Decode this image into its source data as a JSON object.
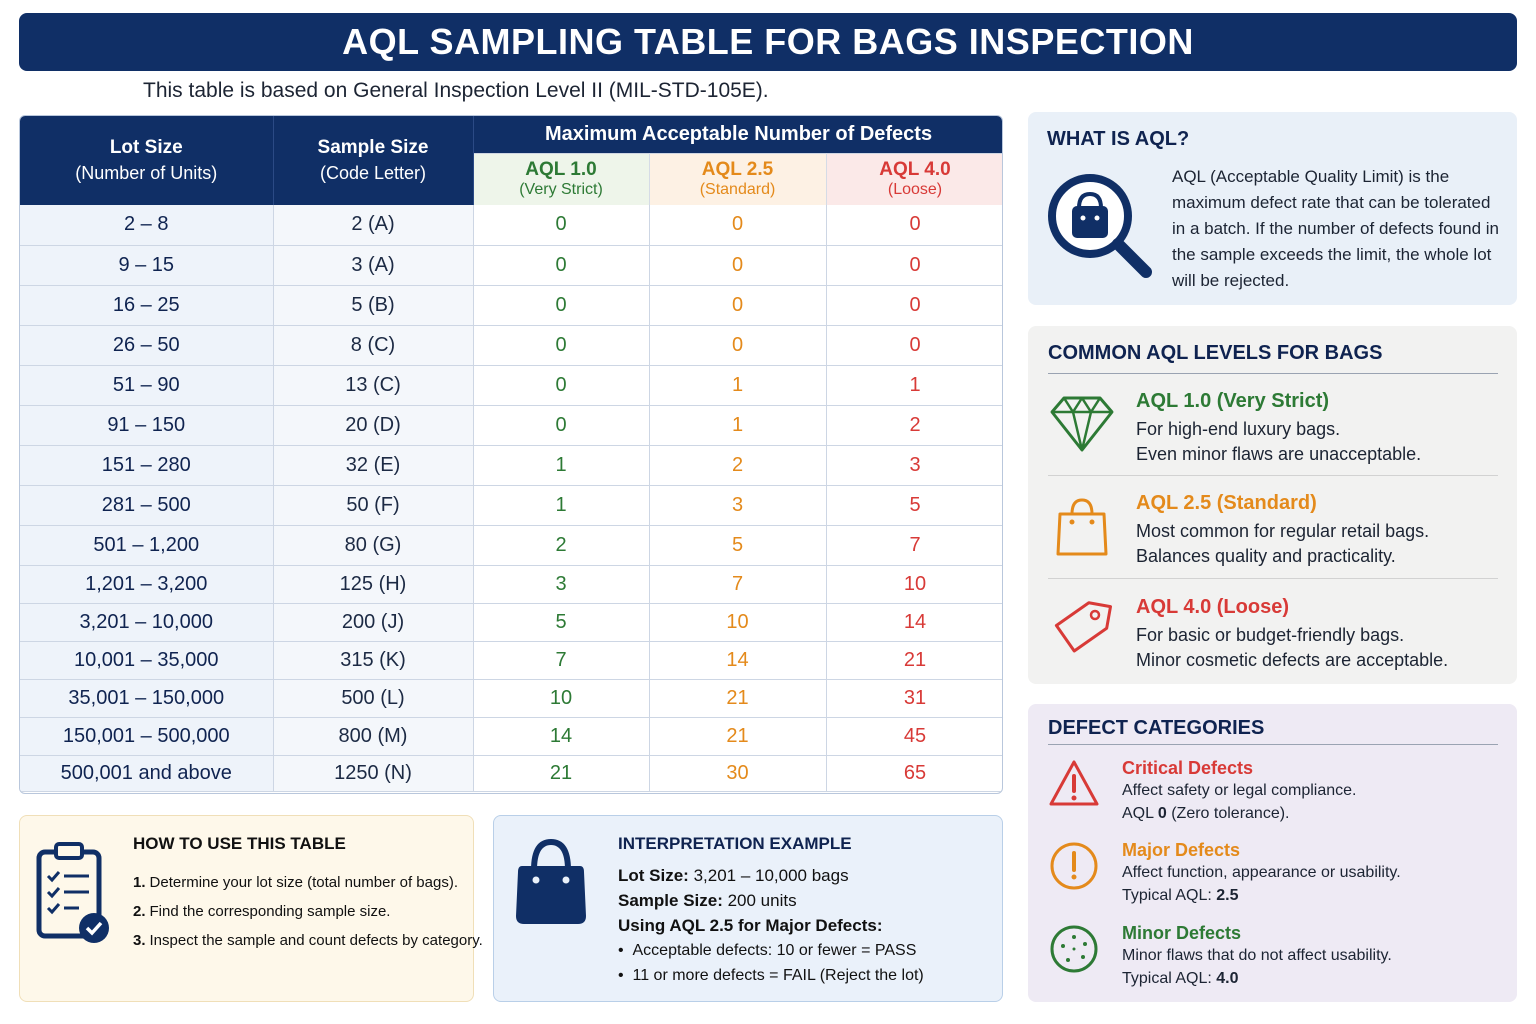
{
  "title": "AQL SAMPLING TABLE FOR BAGS INSPECTION",
  "subtitle": "This table is based on General Inspection Level II (MIL-STD-105E).",
  "table": {
    "headers": {
      "lot_size": "Lot Size",
      "lot_size_sub": "(Number of Units)",
      "sample_size": "Sample Size",
      "sample_size_sub": "(Code Letter)",
      "group": "Maximum Acceptable Number of Defects",
      "aql1": "AQL 1.0",
      "aql1_sub": "(Very Strict)",
      "aql2": "AQL 2.5",
      "aql2_sub": "(Standard)",
      "aql3": "AQL 4.0",
      "aql3_sub": "(Loose)"
    },
    "rows": [
      {
        "lot": "2 – 8",
        "sample": "2 (A)",
        "a1": "0",
        "a2": "0",
        "a3": "0"
      },
      {
        "lot": "9 – 15",
        "sample": "3 (A)",
        "a1": "0",
        "a2": "0",
        "a3": "0"
      },
      {
        "lot": "16 – 25",
        "sample": "5 (B)",
        "a1": "0",
        "a2": "0",
        "a3": "0"
      },
      {
        "lot": "26 – 50",
        "sample": "8 (C)",
        "a1": "0",
        "a2": "0",
        "a3": "0"
      },
      {
        "lot": "51 – 90",
        "sample": "13 (C)",
        "a1": "0",
        "a2": "1",
        "a3": "1"
      },
      {
        "lot": "91 – 150",
        "sample": "20 (D)",
        "a1": "0",
        "a2": "1",
        "a3": "2"
      },
      {
        "lot": "151 – 280",
        "sample": "32 (E)",
        "a1": "1",
        "a2": "2",
        "a3": "3"
      },
      {
        "lot": "281 – 500",
        "sample": "50 (F)",
        "a1": "1",
        "a2": "3",
        "a3": "5"
      },
      {
        "lot": "501 – 1,200",
        "sample": "80 (G)",
        "a1": "2",
        "a2": "5",
        "a3": "7"
      },
      {
        "lot": "1,201 – 3,200",
        "sample": "125 (H)",
        "a1": "3",
        "a2": "7",
        "a3": "10"
      },
      {
        "lot": "3,201 – 10,000",
        "sample": "200 (J)",
        "a1": "5",
        "a2": "10",
        "a3": "14"
      },
      {
        "lot": "10,001 – 35,000",
        "sample": "315 (K)",
        "a1": "7",
        "a2": "14",
        "a3": "21"
      },
      {
        "lot": "35,001 – 150,000",
        "sample": "500 (L)",
        "a1": "10",
        "a2": "21",
        "a3": "31"
      },
      {
        "lot": "150,001 – 500,000",
        "sample": "800 (M)",
        "a1": "14",
        "a2": "21",
        "a3": "45"
      },
      {
        "lot": "500,001 and above",
        "sample": "1250 (N)",
        "a1": "21",
        "a2": "30",
        "a3": "65"
      }
    ]
  },
  "what_is_aql": {
    "title": "WHAT IS AQL?",
    "text": "AQL (Acceptable Quality Limit) is the maximum defect rate that can be tolerated in a batch. If the number of defects found in the sample exceeds the limit, the whole lot will be rejected.",
    "icon": "magnifier-bag-icon"
  },
  "levels": {
    "title": "COMMON AQL LEVELS FOR BAGS",
    "items": [
      {
        "head": "AQL 1.0 (Very Strict)",
        "l1": "For high-end luxury bags.",
        "l2": "Even minor flaws are unacceptable.",
        "color": "#2d7a35",
        "icon": "diamond-icon"
      },
      {
        "head": "AQL 2.5 (Standard)",
        "l1": "Most common for regular retail bags.",
        "l2": "Balances quality and practicality.",
        "color": "#e48a1b",
        "icon": "shopping-bag-icon"
      },
      {
        "head": "AQL 4.0 (Loose)",
        "l1": "For basic or budget-friendly bags.",
        "l2": "Minor cosmetic defects are acceptable.",
        "color": "#d83a37",
        "icon": "price-tag-icon"
      }
    ]
  },
  "defects": {
    "title": "DEFECT CATEGORIES",
    "items": [
      {
        "head": "Critical Defects",
        "l1": "Affect safety or legal compliance.",
        "l2_prefix": "AQL ",
        "l2_bold": "0",
        "l2_suffix": " (Zero tolerance).",
        "color": "#d83a37",
        "icon": "warning-triangle-icon"
      },
      {
        "head": "Major Defects",
        "l1": "Affect function, appearance or usability.",
        "l2_prefix": "Typical AQL: ",
        "l2_bold": "2.5",
        "l2_suffix": "",
        "color": "#e48a1b",
        "icon": "exclamation-circle-icon"
      },
      {
        "head": "Minor Defects",
        "l1": "Minor flaws that do not affect usability.",
        "l2_prefix": "Typical AQL: ",
        "l2_bold": "4.0",
        "l2_suffix": "",
        "color": "#2d7a35",
        "icon": "dotted-circle-icon"
      }
    ]
  },
  "howto": {
    "title": "HOW TO USE THIS TABLE",
    "steps": [
      {
        "num": "1.",
        "text": "Determine your lot size (total number of bags)."
      },
      {
        "num": "2.",
        "text": "Find the corresponding sample size."
      },
      {
        "num": "3.",
        "text": "Inspect the sample and count defects by category."
      }
    ],
    "icon": "clipboard-check-icon"
  },
  "interpretation": {
    "title": "INTERPRETATION EXAMPLE",
    "lot_label": "Lot Size:",
    "lot_value": " 3,201 – 10,000 bags",
    "sample_label": "Sample Size:",
    "sample_value": " 200 units",
    "using_label": "Using AQL 2.5 for Major Defects:",
    "bullet1": "Acceptable defects: 10 or fewer = PASS",
    "bullet2": "11 or more defects  = FAIL (Reject the lot)",
    "icon": "handbag-icon"
  },
  "colors": {
    "navy": "#102f66",
    "green": "#2d7a35",
    "orange": "#e48a1b",
    "red": "#d83a37"
  }
}
